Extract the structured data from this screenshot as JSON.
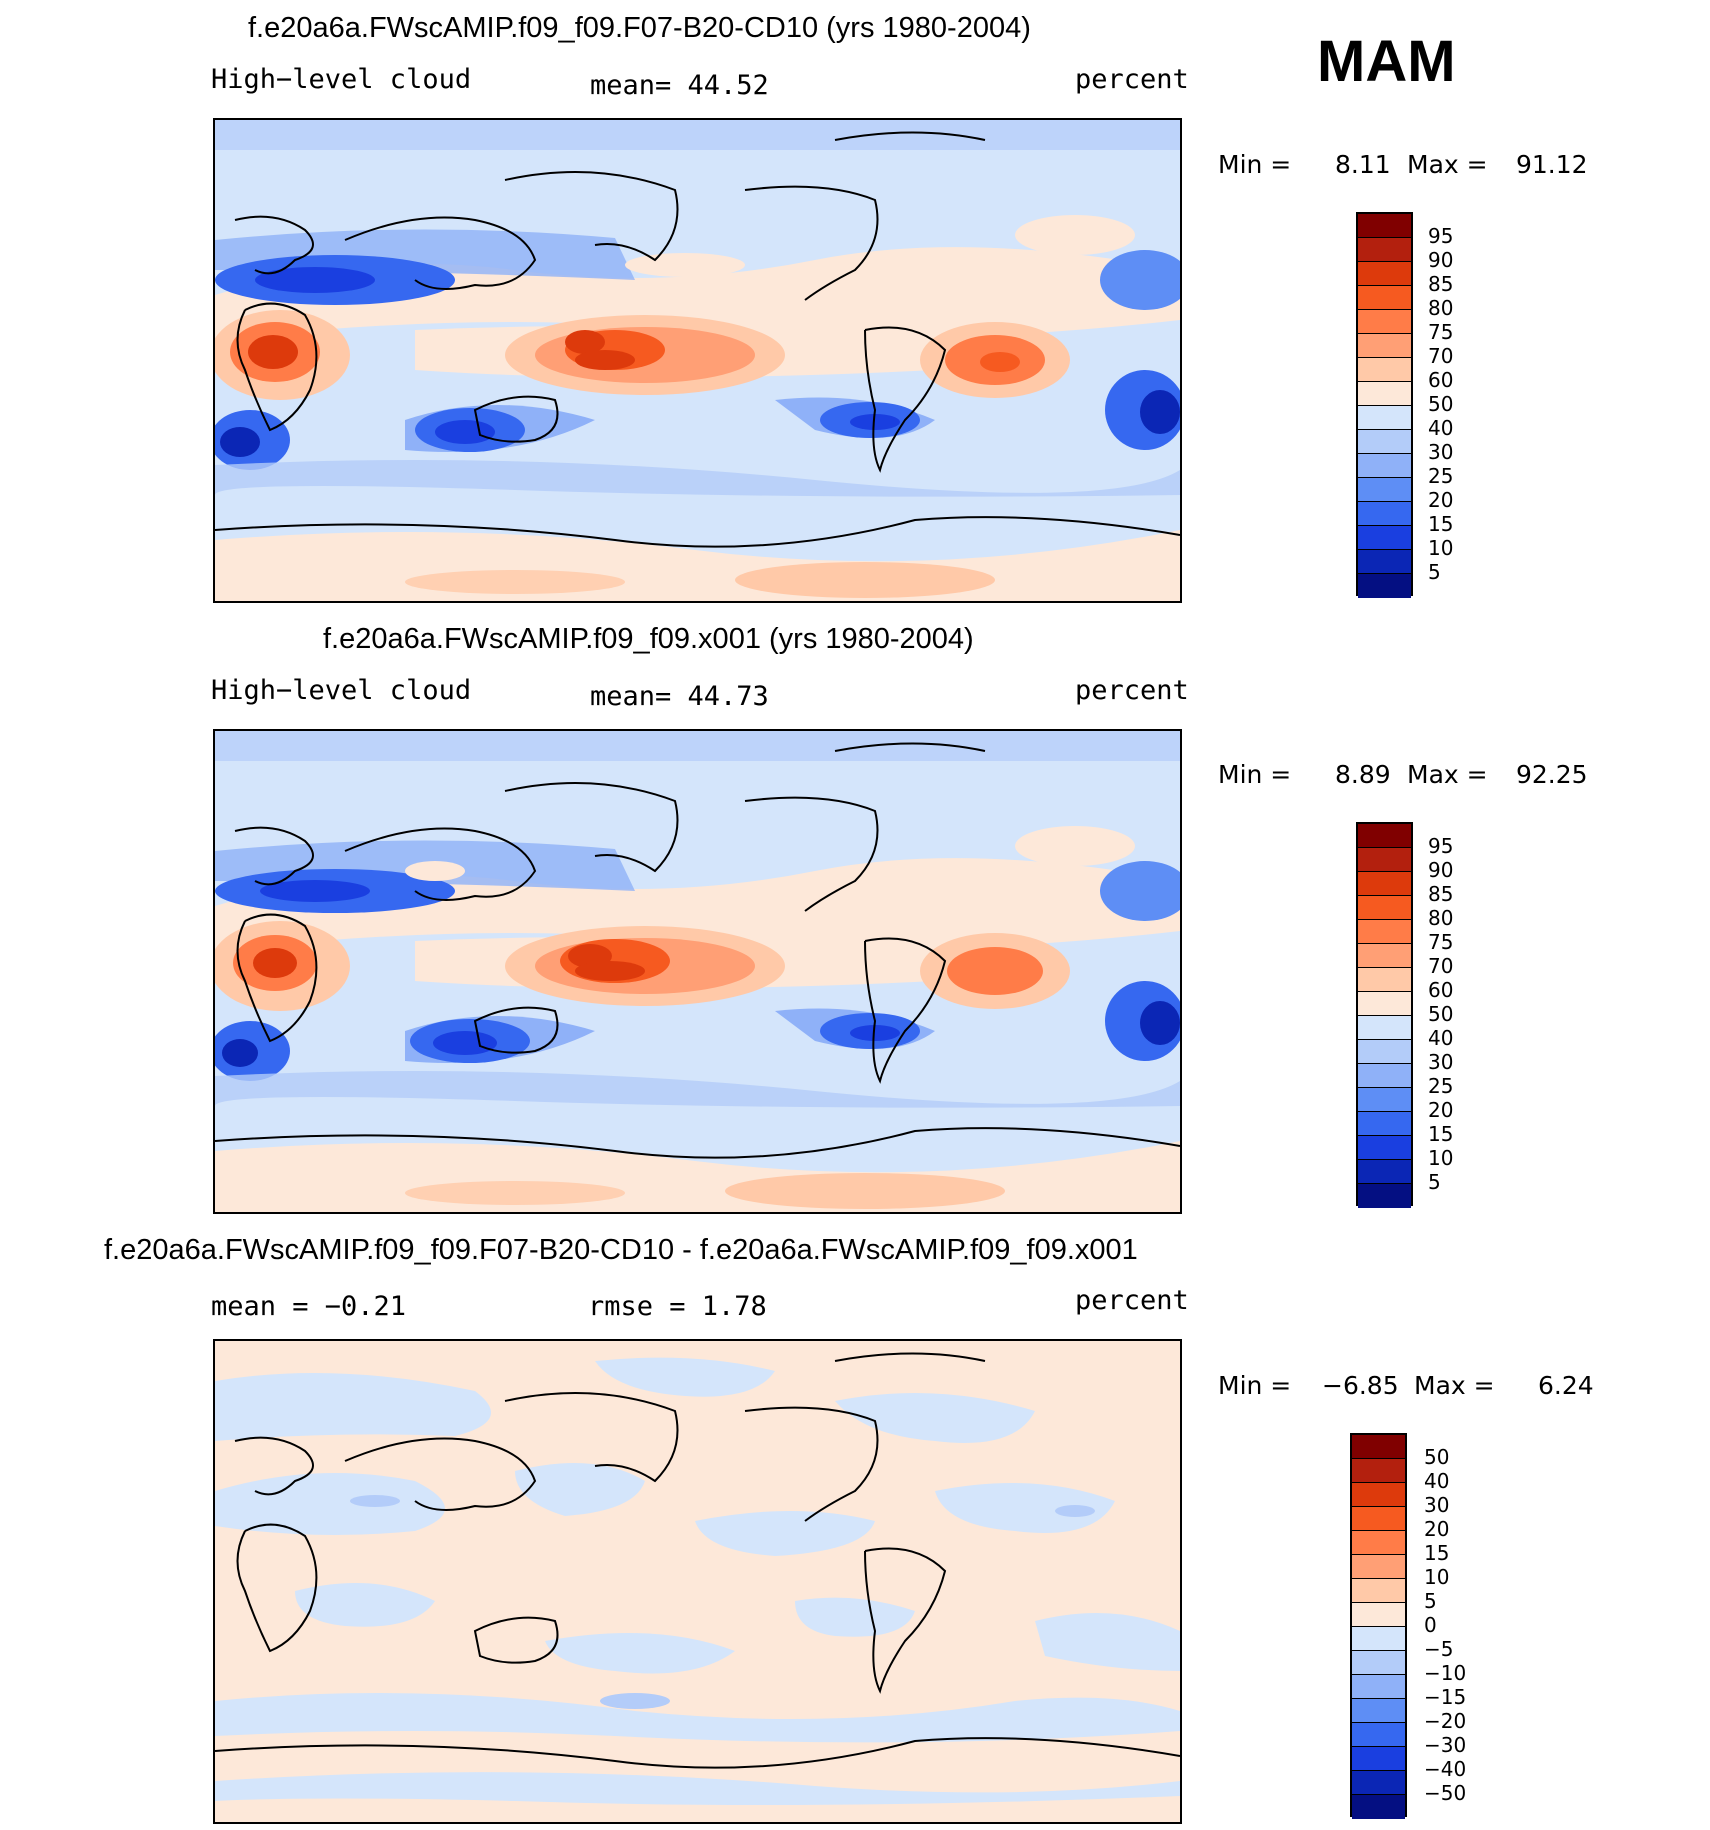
{
  "season": "MAM",
  "chart_data": [
    {
      "type": "heatmap",
      "title": "f.e20a6a.FWscAMIP.f09_f09.F07-B20-CD10 (yrs 1980-2004)",
      "left_label": "High−level cloud",
      "center_label": "mean=   44.52",
      "units": "percent",
      "stats": {
        "min_label": "Min =",
        "min": "8.11",
        "max_label": "Max =",
        "max": "91.12"
      },
      "colorbar": {
        "levels": [
          "95",
          "90",
          "85",
          "80",
          "75",
          "70",
          "60",
          "50",
          "40",
          "30",
          "25",
          "20",
          "15",
          "10",
          "5"
        ],
        "colors": [
          "#800000",
          "#b3200e",
          "#dd3a0c",
          "#f65a20",
          "#ff7c48",
          "#ff9f75",
          "#ffc9a8",
          "#fde8d9",
          "#d4e5fb",
          "#b3ccf9",
          "#8fb1f8",
          "#5e8ef5",
          "#3668f0",
          "#1a3fe0",
          "#0b26b5",
          "#040f82"
        ]
      }
    },
    {
      "type": "heatmap",
      "title": "f.e20a6a.FWscAMIP.f09_f09.x001 (yrs 1980-2004)",
      "left_label": "High−level cloud",
      "center_label": "mean=   44.73",
      "units": "percent",
      "stats": {
        "min_label": "Min =",
        "min": "8.89",
        "max_label": "Max =",
        "max": "92.25"
      },
      "colorbar": {
        "levels": [
          "95",
          "90",
          "85",
          "80",
          "75",
          "70",
          "60",
          "50",
          "40",
          "30",
          "25",
          "20",
          "15",
          "10",
          "5"
        ],
        "colors": [
          "#800000",
          "#b3200e",
          "#dd3a0c",
          "#f65a20",
          "#ff7c48",
          "#ff9f75",
          "#ffc9a8",
          "#fde8d9",
          "#d4e5fb",
          "#b3ccf9",
          "#8fb1f8",
          "#5e8ef5",
          "#3668f0",
          "#1a3fe0",
          "#0b26b5",
          "#040f82"
        ]
      }
    },
    {
      "type": "heatmap",
      "title": "f.e20a6a.FWscAMIP.f09_f09.F07-B20-CD10 - f.e20a6a.FWscAMIP.f09_f09.x001",
      "left_label": "mean =   −0.21",
      "center_label": "rmse =     1.78",
      "units": "percent",
      "stats": {
        "min_label": "Min =",
        "min": "−6.85",
        "max_label": "Max =",
        "max": "6.24"
      },
      "colorbar": {
        "levels": [
          "50",
          "40",
          "30",
          "20",
          "15",
          "10",
          "5",
          "0",
          "−5",
          "−10",
          "−15",
          "−20",
          "−30",
          "−40",
          "−50"
        ],
        "colors": [
          "#800000",
          "#b3200e",
          "#dd3a0c",
          "#f65a20",
          "#ff7c48",
          "#ff9f75",
          "#ffc9a8",
          "#fde8d9",
          "#d4e5fb",
          "#b3ccf9",
          "#8fb1f8",
          "#5e8ef5",
          "#3668f0",
          "#1a3fe0",
          "#0b26b5",
          "#040f82"
        ]
      }
    }
  ]
}
